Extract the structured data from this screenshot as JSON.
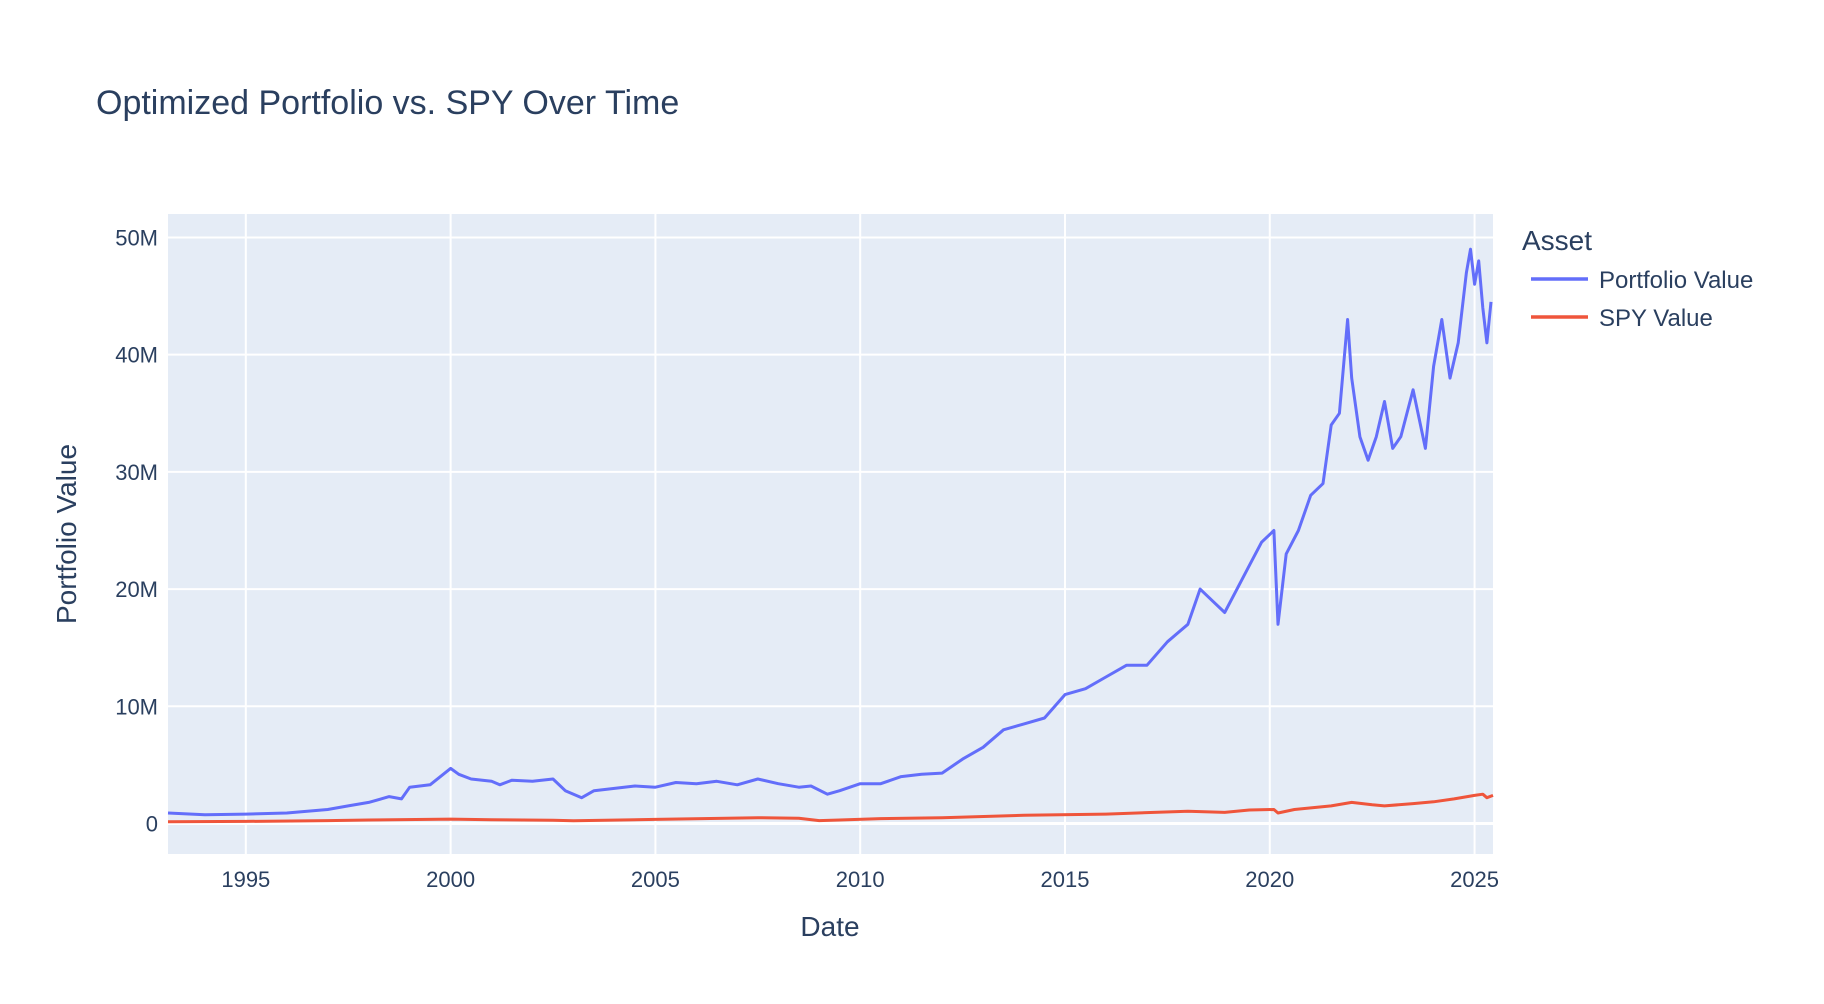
{
  "chart_data": {
    "type": "line",
    "title": "Optimized Portfolio vs. SPY Over Time",
    "xlabel": "Date",
    "ylabel": "Portfolio Value",
    "legend_title": "Asset",
    "legend_position": "top-right outside plot",
    "grid": true,
    "plot_bgcolor": "#E5ECF6",
    "xlim": [
      1993.1,
      2025.45
    ],
    "ylim": [
      -2600000,
      52000000
    ],
    "x_ticks": [
      1995,
      2000,
      2005,
      2010,
      2015,
      2020,
      2025
    ],
    "x_tick_labels": [
      "1995",
      "2000",
      "2005",
      "2010",
      "2015",
      "2020",
      "2025"
    ],
    "y_ticks": [
      0,
      10000000,
      20000000,
      30000000,
      40000000,
      50000000
    ],
    "y_tick_labels": [
      "0",
      "10M",
      "20M",
      "30M",
      "40M",
      "50M"
    ],
    "series": [
      {
        "name": "Portfolio Value",
        "color": "#636EFA",
        "x": [
          1993.1,
          1994.0,
          1995.0,
          1996.0,
          1997.0,
          1997.5,
          1998.0,
          1998.5,
          1998.8,
          1999.0,
          1999.5,
          2000.0,
          2000.2,
          2000.5,
          2001.0,
          2001.2,
          2001.5,
          2002.0,
          2002.5,
          2002.8,
          2003.2,
          2003.5,
          2004.0,
          2004.5,
          2005.0,
          2005.5,
          2006.0,
          2006.5,
          2007.0,
          2007.5,
          2008.0,
          2008.5,
          2008.8,
          2009.2,
          2009.5,
          2010.0,
          2010.5,
          2011.0,
          2011.5,
          2012.0,
          2012.5,
          2013.0,
          2013.5,
          2014.0,
          2014.5,
          2015.0,
          2015.5,
          2016.0,
          2016.5,
          2017.0,
          2017.5,
          2018.0,
          2018.3,
          2018.6,
          2018.9,
          2019.2,
          2019.5,
          2019.8,
          2020.1,
          2020.2,
          2020.4,
          2020.7,
          2021.0,
          2021.3,
          2021.5,
          2021.7,
          2021.9,
          2022.0,
          2022.2,
          2022.4,
          2022.6,
          2022.8,
          2023.0,
          2023.2,
          2023.5,
          2023.8,
          2024.0,
          2024.2,
          2024.4,
          2024.6,
          2024.8,
          2024.9,
          2025.0,
          2025.1,
          2025.2,
          2025.3,
          2025.4
        ],
        "values": [
          900000,
          750000,
          800000,
          900000,
          1200000,
          1500000,
          1800000,
          2300000,
          2100000,
          3100000,
          3300000,
          4700000,
          4200000,
          3800000,
          3600000,
          3300000,
          3700000,
          3600000,
          3800000,
          2800000,
          2200000,
          2800000,
          3000000,
          3200000,
          3100000,
          3500000,
          3400000,
          3600000,
          3300000,
          3800000,
          3400000,
          3100000,
          3200000,
          2500000,
          2800000,
          3400000,
          3400000,
          4000000,
          4200000,
          4300000,
          5500000,
          6500000,
          8000000,
          8500000,
          9000000,
          11000000,
          11500000,
          12500000,
          13500000,
          13500000,
          15500000,
          17000000,
          20000000,
          19000000,
          18000000,
          20000000,
          22000000,
          24000000,
          25000000,
          17000000,
          23000000,
          25000000,
          28000000,
          29000000,
          34000000,
          35000000,
          43000000,
          38000000,
          33000000,
          31000000,
          33000000,
          36000000,
          32000000,
          33000000,
          37000000,
          32000000,
          39000000,
          43000000,
          38000000,
          41000000,
          47000000,
          49000000,
          46000000,
          48000000,
          44000000,
          41000000,
          44500000
        ]
      },
      {
        "name": "SPY Value",
        "color": "#EF553B",
        "x": [
          1993.1,
          1995.0,
          1997.0,
          1998.0,
          2000.0,
          2001.0,
          2002.5,
          2003.0,
          2005.0,
          2007.5,
          2008.5,
          2009.0,
          2009.5,
          2010.5,
          2012.0,
          2014.0,
          2016.0,
          2018.0,
          2018.9,
          2019.5,
          2020.1,
          2020.2,
          2020.6,
          2021.5,
          2022.0,
          2022.5,
          2022.8,
          2023.5,
          2024.0,
          2024.5,
          2025.0,
          2025.2,
          2025.3,
          2025.45
        ],
        "values": [
          150000,
          180000,
          250000,
          300000,
          380000,
          320000,
          280000,
          230000,
          350000,
          500000,
          450000,
          250000,
          300000,
          420000,
          500000,
          700000,
          800000,
          1050000,
          950000,
          1150000,
          1200000,
          900000,
          1200000,
          1500000,
          1800000,
          1600000,
          1500000,
          1700000,
          1850000,
          2100000,
          2400000,
          2500000,
          2200000,
          2400000
        ]
      }
    ]
  }
}
